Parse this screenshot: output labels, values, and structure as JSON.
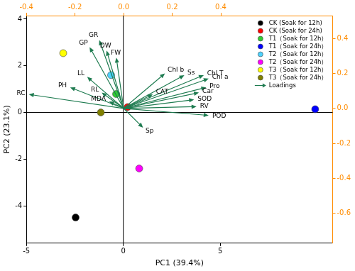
{
  "chart_data": {
    "type": "scatter",
    "x_label": "PC1 (39.4%)",
    "y_label": "PC2 (23.1%)",
    "xlim": [
      -5,
      10.8
    ],
    "xticks": [
      -5,
      0,
      5
    ],
    "ylim": [
      -5.6,
      4.15
    ],
    "yticks": [
      -4,
      -2,
      0,
      2,
      4
    ],
    "x2lim": [
      -0.4,
      0.86
    ],
    "x2ticks": [
      -0.4,
      -0.2,
      {
        "value": 0,
        "label": "0.0"
      },
      0.2,
      0.4
    ],
    "y2lim": [
      -0.77,
      0.53
    ],
    "y2ticks": [
      -0.6,
      -0.4,
      -0.2,
      {
        "value": 0,
        "label": "0.0"
      },
      0.2,
      0.4
    ],
    "grid": false,
    "legend": "top right",
    "series": [
      {
        "name": "CK (Soak for 12h)",
        "color": "#000000",
        "marker": "circle",
        "x": [
          -2.46
        ],
        "values": [
          -4.5
        ]
      },
      {
        "name": "CK (Soak for 24h)",
        "color": "#ff0000",
        "marker": "circle",
        "x": [
          0.22
        ],
        "values": [
          0.23
        ]
      },
      {
        "name": "T1（Soak for 12h）",
        "color": "#33cc33",
        "marker": "circle",
        "x": [
          -0.37
        ],
        "values": [
          0.79
        ]
      },
      {
        "name": "T1（Soak for 24h）",
        "color": "#0000ff",
        "marker": "circle",
        "x": [
          9.9
        ],
        "values": [
          0.14
        ]
      },
      {
        "name": "T2（Soak for 12h）",
        "color": "#4dd2ff",
        "marker": "circle",
        "x": [
          -0.63
        ],
        "values": [
          1.6
        ]
      },
      {
        "name": "T2（Soak for 24h）",
        "color": "#ff00ff",
        "marker": "circle",
        "x": [
          0.82
        ],
        "values": [
          -2.4
        ]
      },
      {
        "name": "T3（Soak for 12h）",
        "color": "#ffff00",
        "marker": "circle",
        "x": [
          -3.1
        ],
        "values": [
          2.54
        ]
      },
      {
        "name": "T3（Soak for 24h）",
        "color": "#808000",
        "marker": "circle",
        "x": [
          -1.16
        ],
        "values": [
          0.0
        ]
      },
      {
        "name": "Loadings",
        "type": "arrow",
        "axis": "y2",
        "color": "#1e7b50",
        "labels": [
          "GR",
          "GP",
          "DW",
          "FW",
          "LL",
          "RL",
          "PH",
          "RC",
          "MDA",
          "Chl b",
          "Ss",
          "Chl T",
          "Chl a",
          "Pro",
          "Car",
          "CAT",
          "SOD",
          "RV",
          "POD",
          "Sp"
        ],
        "x": [
          -0.1,
          -0.14,
          -0.07,
          -0.03,
          -0.15,
          -0.09,
          -0.22,
          -0.39,
          -0.06,
          0.17,
          0.25,
          0.33,
          0.35,
          0.34,
          0.31,
          0.12,
          0.29,
          0.3,
          0.35,
          0.08
        ],
        "values": [
          0.39,
          0.35,
          0.33,
          0.29,
          0.18,
          0.09,
          0.12,
          0.08,
          0.04,
          0.2,
          0.19,
          0.19,
          0.17,
          0.12,
          0.09,
          0.08,
          0.05,
          0.01,
          -0.04,
          -0.11
        ]
      }
    ]
  }
}
